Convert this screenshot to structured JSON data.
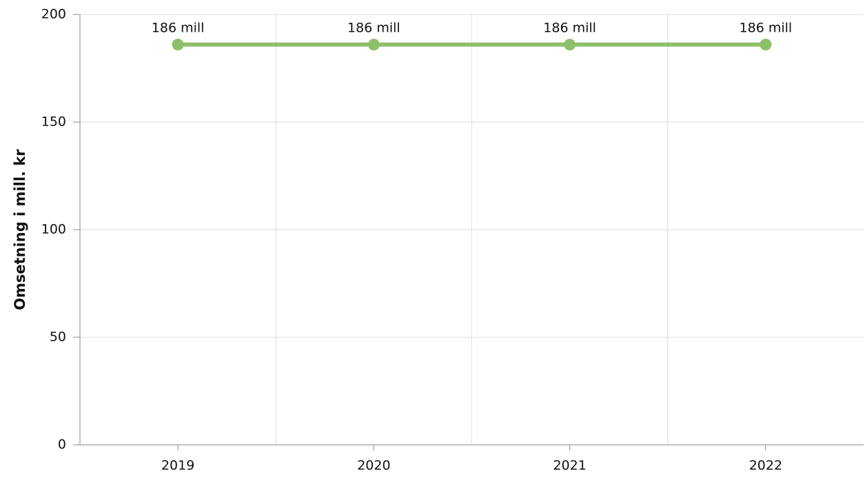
{
  "chart_data": {
    "type": "line",
    "categories": [
      "2019",
      "2020",
      "2021",
      "2022"
    ],
    "series": [
      {
        "values": [
          186,
          186,
          186,
          186
        ],
        "data_labels": [
          "186 mill",
          "186 mill",
          "186 mill",
          "186 mill"
        ],
        "color": "#8cc06b"
      }
    ],
    "ylabel": "Omsetning i mill. kr",
    "xlabel": "",
    "ylim": [
      0,
      200
    ],
    "yticks": [
      0,
      50,
      100,
      150,
      200
    ],
    "grid": true,
    "legend": "none"
  }
}
